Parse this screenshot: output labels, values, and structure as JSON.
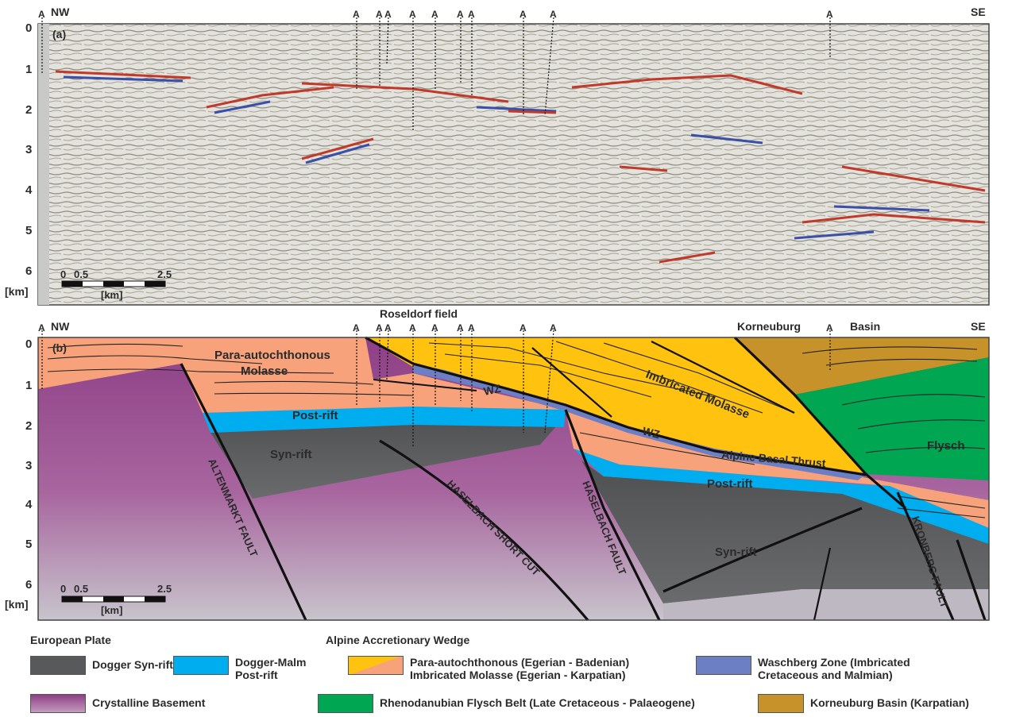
{
  "panel_a": {
    "label": "(a)",
    "nw": "NW",
    "se": "SE",
    "depth_ticks": [
      "0",
      "1",
      "2",
      "3",
      "4",
      "5",
      "6"
    ],
    "depth_unit": "[km]",
    "scale_labels": [
      "0",
      "0.5",
      "2.5"
    ],
    "scale_unit": "[km]",
    "well_marker": "A"
  },
  "panel_b": {
    "label": "(b)",
    "nw": "NW",
    "se": "SE",
    "roseldorf": "Roseldorf field",
    "korneuburg": "Korneuburg",
    "basin": "Basin",
    "depth_ticks": [
      "0",
      "1",
      "2",
      "3",
      "4",
      "5",
      "6"
    ],
    "depth_unit": "[km]",
    "scale_labels": [
      "0",
      "0.5",
      "2.5"
    ],
    "scale_unit": "[km]",
    "well_marker": "A",
    "units": {
      "para_autochthonous_1": "Para-autochthonous",
      "para_autochthonous_2": "Molasse",
      "imbricated_molasse": "Imbricated Molasse",
      "post_rift_1": "Post-rift",
      "post_rift_2": "Post-rift",
      "syn_rift_1": "Syn-rift",
      "syn_rift_2": "Syn-rift",
      "wz_1": "WZ",
      "wz_2": "WZ",
      "alpine_basal_thrust": "Alpine Basal Thrust",
      "flysch": "Flysch"
    },
    "faults": {
      "altenmarkt": "ALTENMARKT FAULT",
      "haselbach_short_cut": "HASELBACH SHORT CUT",
      "haselbach": "HASELBACH FAULT",
      "kronberg": "KRONBERG FAULT"
    }
  },
  "legend": {
    "european_plate": "European Plate",
    "alpine_wedge": "Alpine Accretionary Wedge",
    "dogger_syn_rift": "Dogger Syn-rift",
    "dogger_malm_1": "Dogger-Malm",
    "dogger_malm_2": "Post-rift",
    "para_1": "Para-autochthonous (Egerian - Badenian)",
    "para_2": "Imbricated Molasse (Egerian - Karpatian)",
    "waschberg_1": "Waschberg Zone (Imbricated",
    "waschberg_2": "Cretaceous and Malmian)",
    "crystalline": "Crystalline Basement",
    "flysch_belt": "Rhenodanubian Flysch Belt (Late Cretaceous - Palaeogene)",
    "korneuburg_basin": "Korneuburg Basin (Karpatian)"
  },
  "colors": {
    "syn_rift": "#58595b",
    "post_rift": "#00aeef",
    "para_autochthonous": "#f7a27a",
    "imbricated_molasse": "#ffc20e",
    "waschberg": "#6c7fc4",
    "flysch": "#00a651",
    "korneuburg": "#c8922a",
    "basement_top": "#8e3f86",
    "basement_bottom": "#c8c4cc"
  }
}
